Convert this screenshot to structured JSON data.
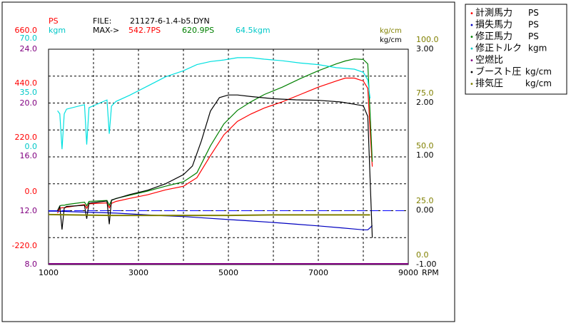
{
  "header": {
    "ps_label": "PS",
    "kgm_label": "kgm",
    "file_label": "FILE:",
    "file_name": "21127-6-1.4-b5.DYN",
    "max_label": "MAX->",
    "max_measured": "542.7PS",
    "max_corrected": "620.9PS",
    "max_torque": "64.5kgm",
    "kgcm_label_a": "kg/cm",
    "kgcm_label_b": "kg/cm"
  },
  "left_axis_labels": [
    {
      "text": "660.0",
      "color": "#ff0000"
    },
    {
      "text": "70.0",
      "color": "#00c8c8"
    },
    {
      "text": "24.0",
      "color": "#800080"
    },
    {
      "text": "440.0",
      "color": "#ff0000"
    },
    {
      "text": "35.0",
      "color": "#00c8c8"
    },
    {
      "text": "20.0",
      "color": "#800080"
    },
    {
      "text": "220.0",
      "color": "#ff0000"
    },
    {
      "text": "0.0",
      "color": "#00c8c8"
    },
    {
      "text": "16.0",
      "color": "#800080"
    },
    {
      "text": "0.0",
      "color": "#ff0000"
    },
    {
      "text": "12.0",
      "color": "#800080"
    },
    {
      "text": "-220.0",
      "color": "#ff0000"
    },
    {
      "text": "8.0",
      "color": "#800080"
    }
  ],
  "right_axis_olive": [
    "100.0",
    "75.0",
    "50.0",
    "25.0",
    "0.0"
  ],
  "right_axis_black": [
    "3.00",
    "2.00",
    "1.00",
    "0.00",
    "-1.00"
  ],
  "x_ticks": [
    "1000",
    "3000",
    "5000",
    "7000",
    "9000"
  ],
  "x_unit": "RPM",
  "legend": [
    {
      "name": "計測馬力",
      "unit": "PS",
      "color": "#ff0000"
    },
    {
      "name": "損失馬力",
      "unit": "PS",
      "color": "#0000c0"
    },
    {
      "name": "修正馬力",
      "unit": "PS",
      "color": "#008000"
    },
    {
      "name": "修正トルク",
      "unit": "kgm",
      "color": "#00c8c8"
    },
    {
      "name": "空燃比",
      "unit": "",
      "color": "#800080"
    },
    {
      "name": "ブースト圧",
      "unit": "kg/cm",
      "color": "#000000"
    },
    {
      "name": "排気圧",
      "unit": "kg/cm",
      "color": "#808000"
    }
  ],
  "colors": {
    "measured_hp": "#ff0000",
    "loss_hp": "#0000c0",
    "corrected_hp": "#008000",
    "corrected_torque": "#00e0e0",
    "afr": "#800080",
    "boost": "#000000",
    "exhaust": "#808000"
  },
  "chart_data": {
    "type": "line",
    "x_unit": "RPM",
    "xlim": [
      1000,
      9000
    ],
    "axes": {
      "hp": {
        "min": -220,
        "max": 660
      },
      "torque": {
        "min": -70,
        "max": 70
      },
      "afr": {
        "min": 8,
        "max": 24
      },
      "boost": {
        "min": -1,
        "max": 3
      },
      "exhaust": {
        "min": -25,
        "max": 100
      }
    },
    "series": [
      {
        "name": "計測馬力",
        "axis": "hp",
        "x": [
          1200,
          1250,
          1300,
          1350,
          1400,
          1800,
          1850,
          1900,
          2300,
          2350,
          2400,
          2500,
          2800,
          3200,
          3600,
          4000,
          4300,
          4600,
          4900,
          5200,
          5500,
          5800,
          6200,
          6600,
          7000,
          7400,
          7600,
          7800,
          8000,
          8100,
          8150,
          8200
        ],
        "y": [
          -10,
          10,
          12,
          12,
          14,
          25,
          10,
          28,
          32,
          12,
          30,
          38,
          50,
          65,
          85,
          100,
          135,
          225,
          310,
          365,
          395,
          420,
          445,
          475,
          505,
          530,
          542,
          542,
          530,
          500,
          330,
          180
        ]
      },
      {
        "name": "損失馬力",
        "axis": "hp",
        "x": [
          1000,
          1200,
          1500,
          2000,
          2500,
          3000,
          3500,
          4000,
          4500,
          5000,
          5500,
          6000,
          6500,
          7000,
          7500,
          7800,
          8000,
          8100,
          8150,
          8200
        ],
        "y": [
          -2,
          -2,
          -4,
          -7,
          -10,
          -15,
          -20,
          -24,
          -30,
          -36,
          -42,
          -48,
          -55,
          -62,
          -70,
          -75,
          -78,
          -78,
          -70,
          -60
        ]
      },
      {
        "name": "修正馬力",
        "axis": "hp",
        "x": [
          1200,
          1250,
          1300,
          1350,
          1400,
          1800,
          1850,
          1900,
          2300,
          2350,
          2400,
          2500,
          2800,
          3200,
          3600,
          4000,
          4300,
          4600,
          4900,
          5200,
          5500,
          5800,
          6200,
          6600,
          7000,
          7400,
          7600,
          7800,
          8000,
          8100,
          8150,
          8200
        ],
        "y": [
          0,
          20,
          22,
          22,
          25,
          35,
          20,
          38,
          42,
          22,
          42,
          50,
          63,
          80,
          100,
          118,
          155,
          265,
          355,
          410,
          445,
          475,
          505,
          540,
          572,
          600,
          612,
          620,
          618,
          600,
          400,
          200
        ]
      },
      {
        "name": "修正トルク",
        "axis": "torque",
        "x": [
          1200,
          1250,
          1300,
          1350,
          1400,
          1800,
          1850,
          1900,
          2300,
          2350,
          2400,
          2500,
          2800,
          3200,
          3600,
          4000,
          4300,
          4600,
          4900,
          5200,
          5500,
          5800,
          6200,
          6600,
          7000,
          7400,
          7800,
          8000,
          8100,
          8150
        ],
        "y": [
          30,
          28,
          5,
          28,
          31,
          34,
          8,
          32,
          37,
          15,
          33,
          36,
          40,
          46,
          52,
          56,
          60,
          62,
          63,
          64.5,
          64.5,
          63.5,
          62.5,
          61,
          60,
          58,
          57,
          55,
          50,
          38
        ]
      },
      {
        "name": "ブースト圧",
        "axis": "boost",
        "x": [
          1200,
          1250,
          1300,
          1350,
          1400,
          1800,
          1850,
          1900,
          2300,
          2350,
          2400,
          2800,
          3200,
          3600,
          4000,
          4200,
          4400,
          4600,
          4800,
          5000,
          5200,
          5500,
          6000,
          6500,
          7000,
          7500,
          8000,
          8100,
          8150,
          8200
        ],
        "y": [
          0,
          0.08,
          -0.35,
          0.05,
          0.08,
          0.1,
          -0.15,
          0.14,
          0.18,
          -0.25,
          0.2,
          0.3,
          0.38,
          0.5,
          0.67,
          0.83,
          1.3,
          1.85,
          2.1,
          2.15,
          2.15,
          2.12,
          2.08,
          2.06,
          2.05,
          2.02,
          1.95,
          1.75,
          0.6,
          -0.5
        ]
      },
      {
        "name": "排気圧",
        "axis": "exhaust",
        "x": [
          1000,
          2400,
          3000,
          4000,
          5000,
          6000,
          7000,
          8000,
          8150
        ],
        "y": [
          4,
          3.5,
          3.5,
          3.5,
          3.5,
          3.8,
          3.8,
          3.8,
          3.8
        ]
      }
    ]
  }
}
